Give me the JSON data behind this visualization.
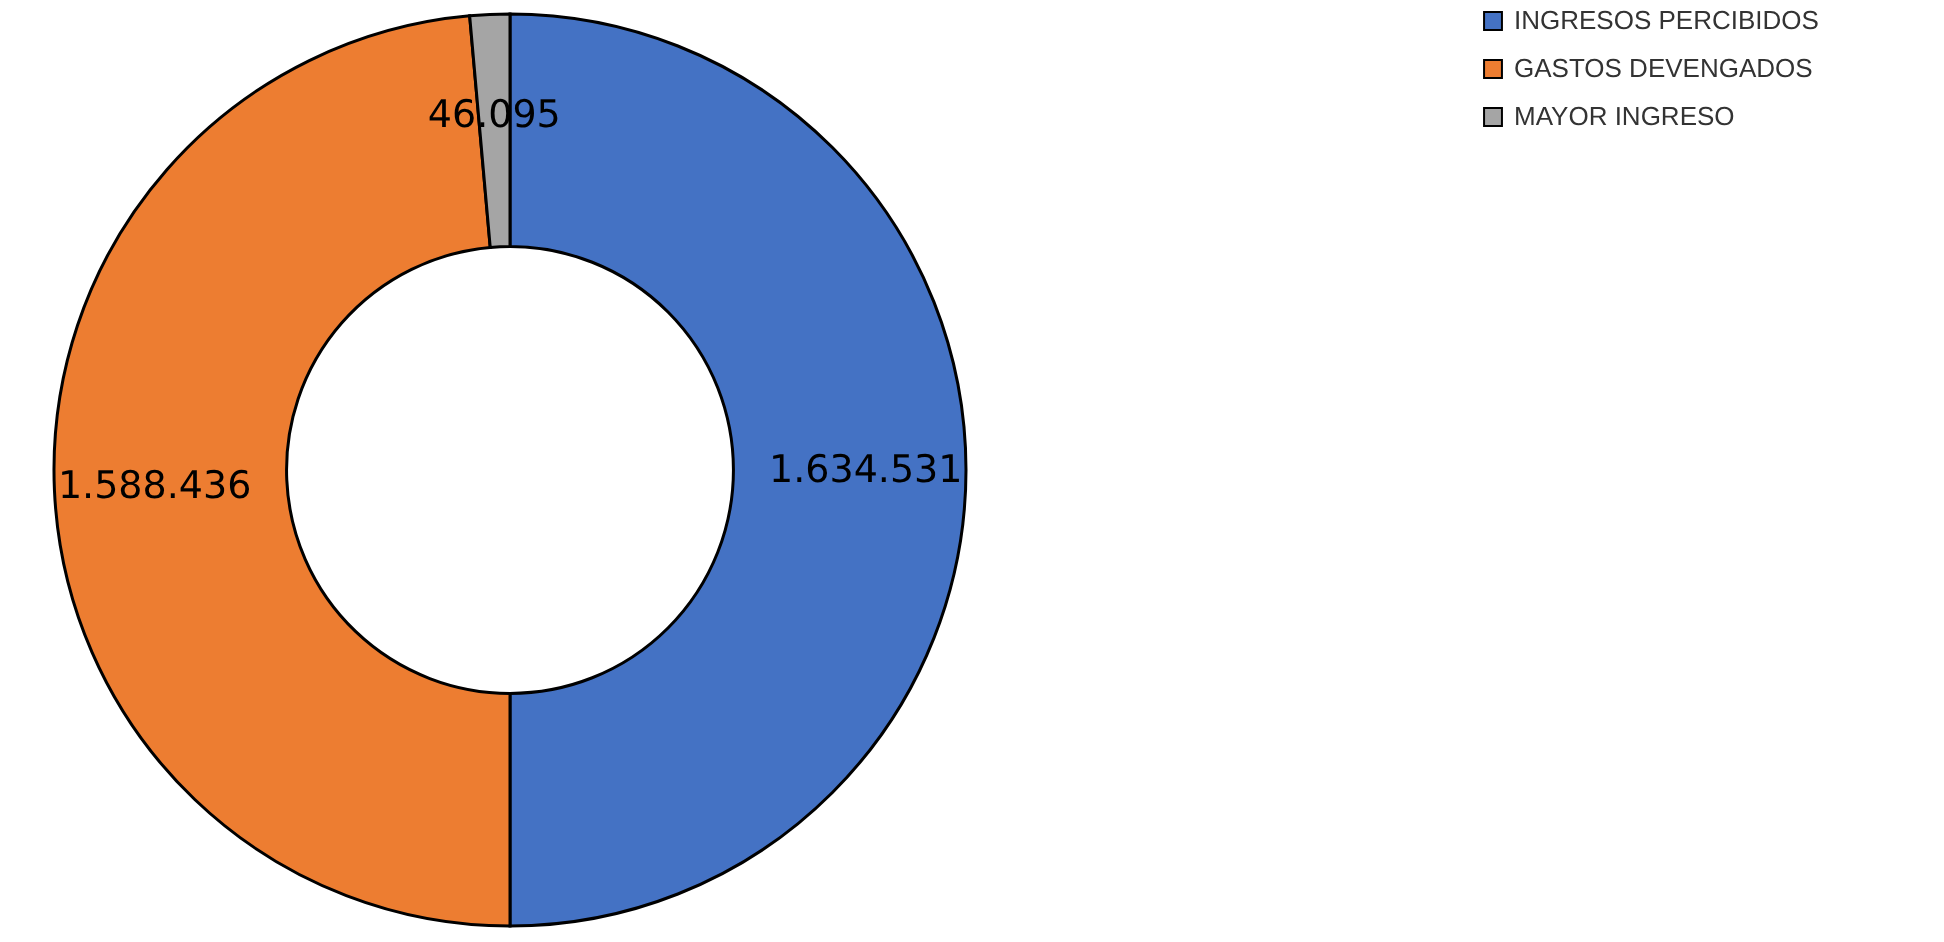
{
  "chart_data": {
    "type": "donut",
    "categories": [
      "INGRESOS  PERCIBIDOS",
      "GASTOS DEVENGADOS",
      "MAYOR INGRESO"
    ],
    "values": [
      1634531,
      1588436,
      46095
    ],
    "colors": [
      "#4472c4",
      "#ed7d31",
      "#a5a5a5"
    ],
    "value_labels": [
      "1.634.531",
      "1.588.436",
      "46.095"
    ],
    "legend": "right"
  }
}
